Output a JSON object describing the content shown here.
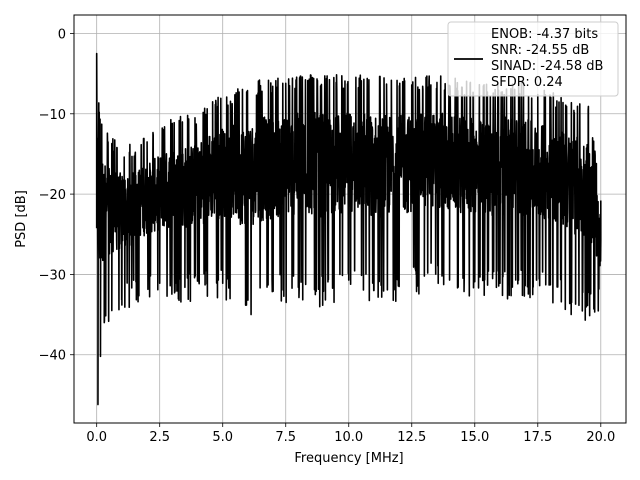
{
  "chart_data": {
    "type": "line",
    "xlabel": "Frequency [MHz]",
    "ylabel": "PSD [dB]",
    "xlim": [
      -0.9,
      21.0
    ],
    "ylim": [
      -48.5,
      2.3
    ],
    "xticks": [
      0.0,
      2.5,
      5.0,
      7.5,
      10.0,
      12.5,
      15.0,
      17.5,
      20.0
    ],
    "xtick_labels": [
      "0.0",
      "2.5",
      "5.0",
      "7.5",
      "10.0",
      "12.5",
      "15.0",
      "17.5",
      "20.0"
    ],
    "yticks": [
      0,
      -10,
      -20,
      -30,
      -40
    ],
    "ytick_labels": [
      "0",
      "−10",
      "−20",
      "−30",
      "−40"
    ],
    "grid": true,
    "legend_position": "top-right",
    "legend_lines": [
      "ENOB: -4.37 bits",
      "SNR: -24.55 dB",
      "SINAD: -24.58 dB",
      "SFDR: 0.24"
    ],
    "series": [
      {
        "color": "#000000",
        "x": [
          0.0,
          0.05,
          0.1,
          0.15,
          0.2,
          0.3,
          0.45,
          0.6,
          0.8,
          1.0,
          1.3,
          1.6,
          2.0,
          2.5,
          3.0,
          3.5,
          3.9,
          4.3,
          4.6,
          5.0,
          5.5,
          6.0,
          6.5,
          7.0,
          7.5,
          8.0,
          8.5,
          9.0,
          9.5,
          10.0,
          10.5,
          11.0,
          11.5,
          12.0,
          12.5,
          13.0,
          13.5,
          14.0,
          14.5,
          15.0,
          15.5,
          16.0,
          16.5,
          17.0,
          17.5,
          18.0,
          18.5,
          19.0,
          19.5,
          20.0
        ],
        "y": [
          -2.5,
          -46.2,
          -9.8,
          -40.2,
          -11.3,
          -36.0,
          -13.5,
          -34.5,
          -14.2,
          -33.8,
          -14.8,
          -31.6,
          -13.5,
          -31.1,
          -11.2,
          -31.6,
          -10.5,
          -31.3,
          -8.5,
          -31.1,
          -7.7,
          -33.2,
          -6.5,
          -32.1,
          -6.2,
          -31.6,
          -5.9,
          -32.1,
          -6.1,
          -30.7,
          -5.9,
          -32.0,
          -6.3,
          -31.5,
          -6.4,
          -30.2,
          -6.1,
          -30.7,
          -6.7,
          -30.9,
          -7.3,
          -31.1,
          -6.3,
          -31.4,
          -7.6,
          -31.3,
          -8.6,
          -33.7,
          -9.5,
          -20.8
        ]
      }
    ]
  }
}
